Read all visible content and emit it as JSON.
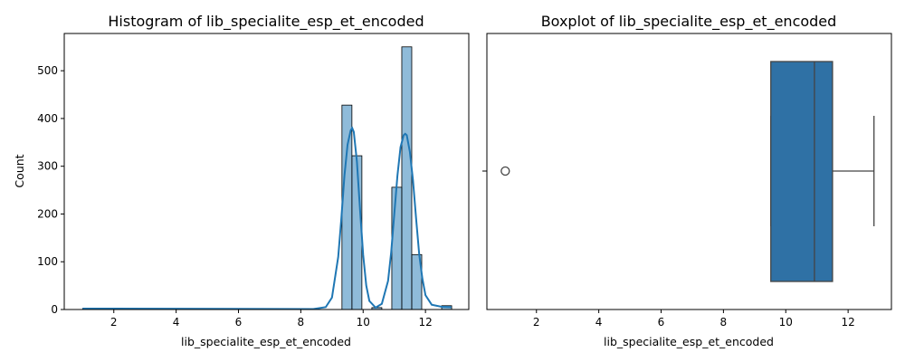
{
  "colors": {
    "hist_fill": "#1f77b4",
    "hist_fill_opacity": 0.5,
    "kde_line": "#1f77b4",
    "box_fill": "#2f71a5",
    "axis": "#000000",
    "whisker": "#444444"
  },
  "chart_data": [
    {
      "type": "histogram",
      "title": "Histogram of lib_specialite_esp_et_encoded",
      "xlabel": "lib_specialite_esp_et_encoded",
      "ylabel": "Count",
      "xlim": [
        0.41,
        13.39
      ],
      "ylim": [
        0,
        578
      ],
      "xticks": [
        2,
        4,
        6,
        8,
        10,
        12
      ],
      "yticks": [
        0,
        100,
        200,
        300,
        400,
        500
      ],
      "bin_width": 0.32,
      "bins": [
        {
          "x0": 1.0,
          "count": 2
        },
        {
          "x0": 9.32,
          "count": 428
        },
        {
          "x0": 9.64,
          "count": 322
        },
        {
          "x0": 10.28,
          "count": 4
        },
        {
          "x0": 10.92,
          "count": 256
        },
        {
          "x0": 11.24,
          "count": 550
        },
        {
          "x0": 11.56,
          "count": 115
        },
        {
          "x0": 12.52,
          "count": 8
        }
      ],
      "kde": {
        "x": [
          1.0,
          8.4,
          8.8,
          9.0,
          9.2,
          9.3,
          9.4,
          9.5,
          9.6,
          9.65,
          9.7,
          9.8,
          9.9,
          10.0,
          10.1,
          10.2,
          10.4,
          10.6,
          10.8,
          10.9,
          11.0,
          11.1,
          11.2,
          11.3,
          11.35,
          11.4,
          11.5,
          11.6,
          11.7,
          11.8,
          11.9,
          12.0,
          12.2,
          12.5,
          12.83
        ],
        "y": [
          2,
          1,
          5,
          25,
          110,
          190,
          280,
          345,
          375,
          380,
          372,
          310,
          210,
          115,
          50,
          18,
          4,
          12,
          60,
          120,
          200,
          280,
          340,
          365,
          368,
          365,
          330,
          270,
          190,
          115,
          65,
          30,
          10,
          6,
          5
        ]
      }
    },
    {
      "type": "boxplot",
      "title": "Boxplot of lib_specialite_esp_et_encoded",
      "xlabel": "lib_specialite_esp_et_encoded",
      "xlim": [
        0.41,
        13.39
      ],
      "xticks": [
        2,
        4,
        6,
        8,
        10,
        12
      ],
      "whisker_low": 9.52,
      "q1": 9.52,
      "median": 10.92,
      "q3": 11.5,
      "whisker_high": 12.83,
      "outliers": [
        1.0
      ]
    }
  ]
}
